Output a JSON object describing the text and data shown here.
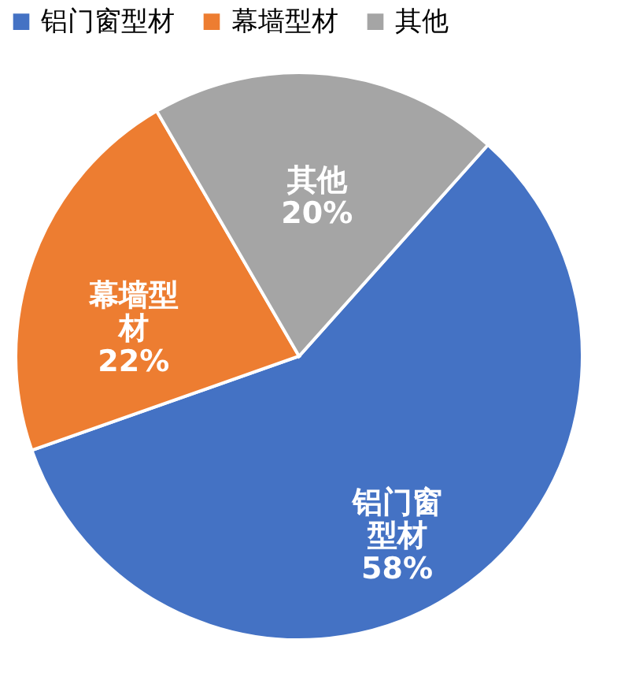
{
  "chart_data": {
    "type": "pie",
    "categories": [
      "铝门窗型材",
      "幕墙型材",
      "其他"
    ],
    "values": [
      58,
      22,
      20
    ],
    "colors": [
      "#4472c4",
      "#ed7d31",
      "#a5a5a5"
    ],
    "value_labels": [
      "铝门窗型材58%",
      "幕墙型材22%",
      "其他20%"
    ],
    "legend": "top"
  }
}
